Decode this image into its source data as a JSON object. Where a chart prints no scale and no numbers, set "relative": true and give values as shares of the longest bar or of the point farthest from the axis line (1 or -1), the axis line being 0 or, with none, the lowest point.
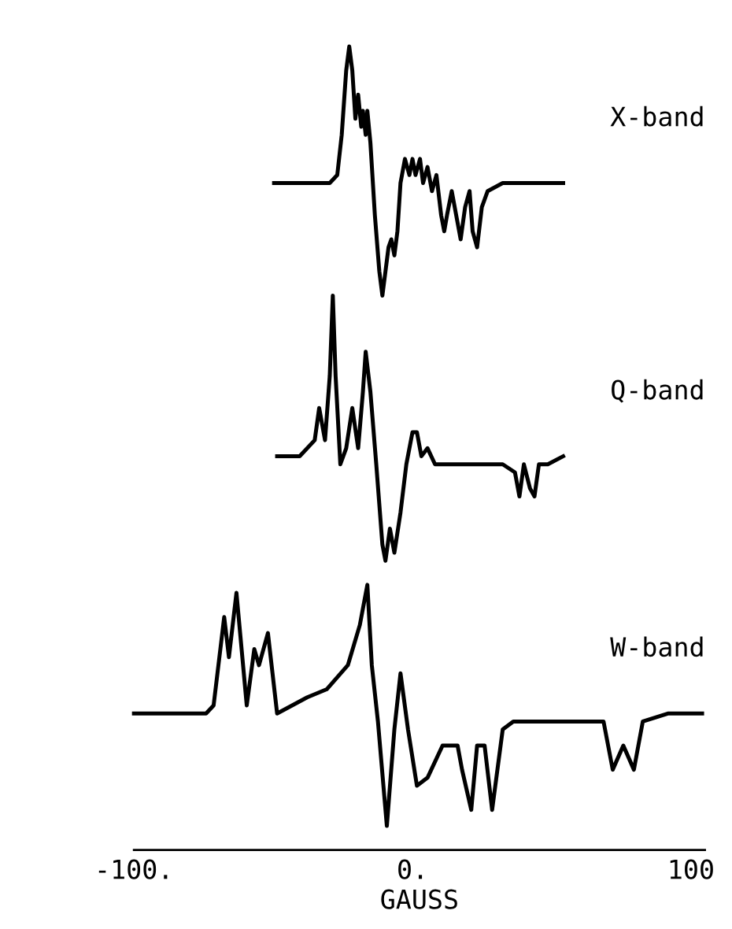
{
  "chart_data": {
    "type": "line",
    "relative": true,
    "xlim": [
      -100,
      105
    ],
    "tick_labels": "x",
    "xlabel": "GAUSS",
    "xticks": [
      {
        "value": -100,
        "label": "-100."
      },
      {
        "value": 0,
        "label": "0."
      },
      100
    ],
    "series": [
      {
        "name": "X-band",
        "color": "#000000",
        "x": [
          -49.7,
          -37.8,
          -29.7,
          -27.0,
          -25.4,
          -23.8,
          -22.7,
          -21.6,
          -20.5,
          -19.5,
          -18.4,
          -17.8,
          -16.8,
          -16.2,
          -15.1,
          -13.5,
          -11.9,
          -10.8,
          -9.7,
          -8.6,
          -7.6,
          -6.5,
          -5.4,
          -4.3,
          -2.7,
          -1.1,
          0,
          1.1,
          2.7,
          3.8,
          5.4,
          7.0,
          8.6,
          10.3,
          11.4,
          12.4,
          14.1,
          15.7,
          17.3,
          18.9,
          20.5,
          21.6,
          23.2,
          24.9,
          27.0,
          32.4,
          37.8,
          54.1
        ],
        "values": [
          0.83,
          0.83,
          0.83,
          0.84,
          0.89,
          0.97,
          1.0,
          0.97,
          0.91,
          0.94,
          0.9,
          0.92,
          0.89,
          0.92,
          0.88,
          0.79,
          0.72,
          0.69,
          0.72,
          0.75,
          0.76,
          0.74,
          0.77,
          0.83,
          0.86,
          0.84,
          0.86,
          0.84,
          0.86,
          0.83,
          0.85,
          0.82,
          0.84,
          0.79,
          0.77,
          0.79,
          0.82,
          0.79,
          0.76,
          0.8,
          0.82,
          0.77,
          0.75,
          0.8,
          0.82,
          0.83,
          0.83,
          0.83
        ]
      },
      {
        "name": "Q-band",
        "color": "#000000",
        "x": [
          -48.6,
          -40.5,
          -35.1,
          -33.5,
          -31.4,
          -29.7,
          -28.6,
          -27.6,
          -25.9,
          -23.8,
          -21.6,
          -19.5,
          -17.8,
          -16.8,
          -15.1,
          -13.0,
          -10.8,
          -9.7,
          -8.1,
          -6.5,
          -4.3,
          -2.2,
          0,
          1.6,
          3.2,
          5.4,
          8.1,
          10.8,
          16.2,
          27.0,
          32.4,
          36.8,
          38.4,
          40.0,
          42.2,
          43.8,
          45.4,
          48.6,
          54.1
        ],
        "values": [
          0.49,
          0.49,
          0.51,
          0.55,
          0.51,
          0.59,
          0.69,
          0.59,
          0.48,
          0.5,
          0.55,
          0.5,
          0.57,
          0.62,
          0.57,
          0.48,
          0.38,
          0.36,
          0.4,
          0.37,
          0.42,
          0.48,
          0.52,
          0.52,
          0.49,
          0.5,
          0.48,
          0.48,
          0.48,
          0.48,
          0.48,
          0.47,
          0.44,
          0.48,
          0.45,
          0.44,
          0.48,
          0.48,
          0.49
        ]
      },
      {
        "name": "W-band",
        "color": "#000000",
        "x": [
          -100.0,
          -74.1,
          -71.4,
          -67.6,
          -65.9,
          -63.2,
          -59.5,
          -56.8,
          -55.1,
          -51.9,
          -48.6,
          -43.2,
          -37.8,
          -30.8,
          -23.2,
          -18.9,
          -16.2,
          -14.6,
          -12.4,
          -9.2,
          -6.5,
          -4.3,
          -1.6,
          1.6,
          5.4,
          10.8,
          16.2,
          17.8,
          21.1,
          23.2,
          25.9,
          28.6,
          32.4,
          36.2,
          41.6,
          59.5,
          68.6,
          71.9,
          75.7,
          79.5,
          82.7,
          91.9,
          104.0
        ],
        "values": [
          0.17,
          0.17,
          0.18,
          0.29,
          0.24,
          0.32,
          0.18,
          0.25,
          0.23,
          0.27,
          0.17,
          0.18,
          0.19,
          0.2,
          0.23,
          0.28,
          0.33,
          0.23,
          0.16,
          0.03,
          0.15,
          0.22,
          0.15,
          0.08,
          0.09,
          0.13,
          0.13,
          0.1,
          0.05,
          0.13,
          0.13,
          0.05,
          0.15,
          0.16,
          0.16,
          0.16,
          0.16,
          0.1,
          0.13,
          0.1,
          0.16,
          0.17,
          0.17
        ]
      }
    ]
  }
}
